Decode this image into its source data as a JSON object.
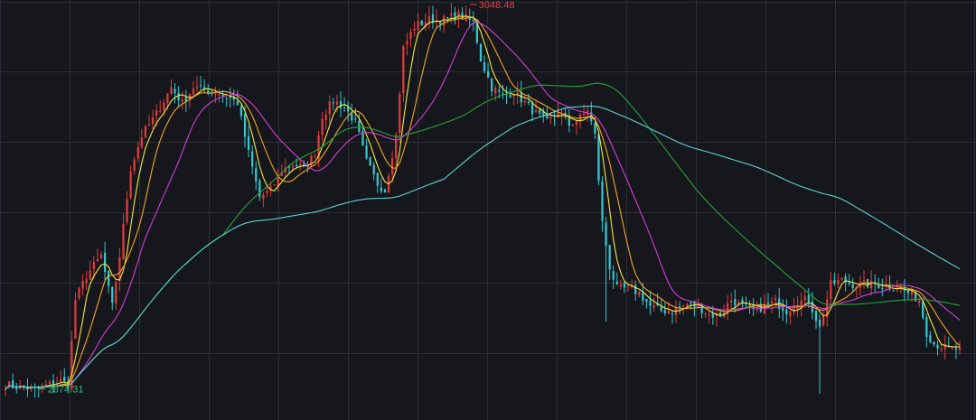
{
  "chart_data": {
    "type": "line",
    "title": "",
    "xlabel": "",
    "ylabel": "",
    "ylim": [
      2860,
      3052
    ],
    "grid": true,
    "x_count": 260,
    "colors": {
      "background": "#15171c",
      "grid": "#2b2e36",
      "candle_up": "#e03c3c",
      "candle_down": "#35c6d0",
      "high_label": "#e8414b",
      "low_label": "#2ec27e"
    },
    "price_anchors": [
      [
        0,
        2876
      ],
      [
        8,
        2874
      ],
      [
        15,
        2878
      ],
      [
        17,
        2876
      ],
      [
        19,
        2915
      ],
      [
        22,
        2926
      ],
      [
        26,
        2935
      ],
      [
        29,
        2912
      ],
      [
        31,
        2935
      ],
      [
        34,
        2975
      ],
      [
        37,
        2990
      ],
      [
        41,
        3000
      ],
      [
        45,
        3012
      ],
      [
        48,
        3005
      ],
      [
        51,
        3012
      ],
      [
        54,
        3011
      ],
      [
        57,
        3010
      ],
      [
        60,
        3008
      ],
      [
        63,
        3005
      ],
      [
        66,
        2982
      ],
      [
        69,
        2962
      ],
      [
        72,
        2965
      ],
      [
        75,
        2974
      ],
      [
        78,
        2977
      ],
      [
        81,
        2975
      ],
      [
        84,
        2982
      ],
      [
        86,
        2999
      ],
      [
        89,
        3006
      ],
      [
        92,
        3003
      ],
      [
        95,
        2996
      ],
      [
        98,
        2978
      ],
      [
        101,
        2968
      ],
      [
        103,
        2965
      ],
      [
        106,
        2990
      ],
      [
        108,
        3030
      ],
      [
        111,
        3040
      ],
      [
        115,
        3043
      ],
      [
        119,
        3043
      ],
      [
        123,
        3045
      ],
      [
        127,
        3042
      ],
      [
        129,
        3025
      ],
      [
        132,
        3012
      ],
      [
        135,
        3008
      ],
      [
        138,
        3010
      ],
      [
        141,
        3005
      ],
      [
        144,
        3000
      ],
      [
        147,
        2996
      ],
      [
        150,
        3001
      ],
      [
        153,
        2995
      ],
      [
        156,
        2998
      ],
      [
        158,
        3002
      ],
      [
        160,
        2990
      ],
      [
        162,
        2950
      ],
      [
        164,
        2930
      ],
      [
        166,
        2920
      ],
      [
        169,
        2920
      ],
      [
        172,
        2918
      ],
      [
        175,
        2912
      ],
      [
        178,
        2910
      ],
      [
        181,
        2910
      ],
      [
        185,
        2913
      ],
      [
        188,
        2912
      ],
      [
        191,
        2908
      ],
      [
        194,
        2908
      ],
      [
        197,
        2915
      ],
      [
        200,
        2912
      ],
      [
        203,
        2910
      ],
      [
        206,
        2912
      ],
      [
        209,
        2914
      ],
      [
        212,
        2910
      ],
      [
        215,
        2914
      ],
      [
        218,
        2915
      ],
      [
        221,
        2902
      ],
      [
        224,
        2922
      ],
      [
        227,
        2924
      ],
      [
        230,
        2922
      ],
      [
        233,
        2922
      ],
      [
        236,
        2922
      ],
      [
        239,
        2921
      ],
      [
        242,
        2921
      ],
      [
        245,
        2918
      ],
      [
        248,
        2915
      ],
      [
        250,
        2900
      ],
      [
        252,
        2895
      ],
      [
        255,
        2893
      ],
      [
        259,
        2892
      ]
    ],
    "series": [
      {
        "period": 5,
        "color": "#f2ea3a"
      },
      {
        "period": 10,
        "color": "#f5a524"
      },
      {
        "period": 20,
        "color": "#d63bd6"
      },
      {
        "period": 60,
        "color": "#24a33a"
      },
      {
        "period": 120,
        "color": "#5ed1d8"
      }
    ],
    "annotations": [
      {
        "text": "3048.48",
        "x": 126,
        "y": 3048.48,
        "role": "high"
      },
      {
        "text": "2874.31",
        "x": 9,
        "y": 2874.31,
        "role": "low"
      }
    ]
  }
}
